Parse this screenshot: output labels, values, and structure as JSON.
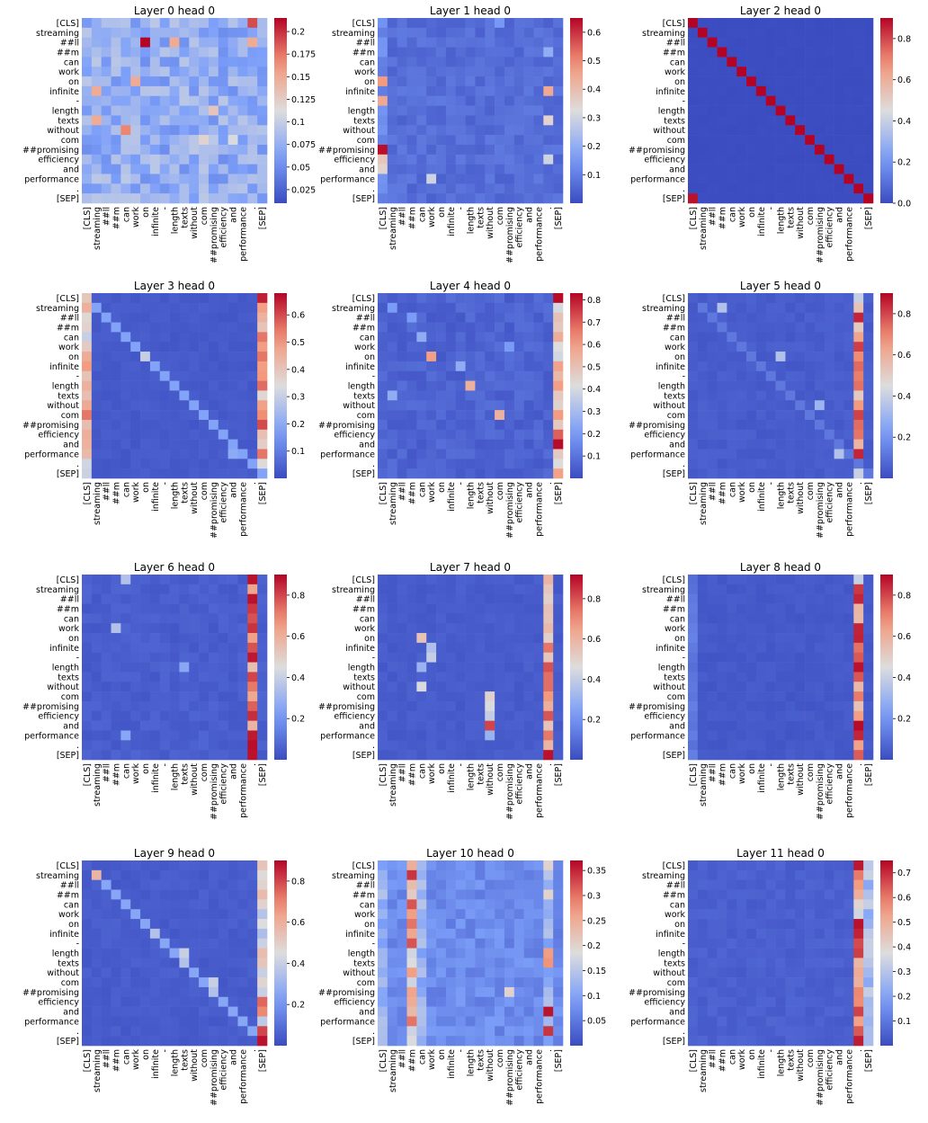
{
  "tokens": [
    "[CLS]",
    "streaming",
    "##ll",
    "##m",
    "can",
    "work",
    "on",
    "infinite",
    "-",
    "length",
    "texts",
    "without",
    "com",
    "##promising",
    "efficiency",
    "and",
    "performance",
    ".",
    "[SEP]"
  ],
  "colormap": {
    "name": "coolwarm",
    "low": "#3b4cc0",
    "mid": "#dddddd",
    "high": "#b40426"
  },
  "chart_data": [
    {
      "type": "heatmap",
      "title": "Layer 0 head 0",
      "colorbar_ticks": [
        0.025,
        0.05,
        0.075,
        0.1,
        0.125,
        0.15,
        0.175,
        0.2
      ],
      "vmin": 0.01,
      "vmax": 0.215,
      "baseline": 0.05,
      "noise": 0.045,
      "cells": [
        [
          0,
          17,
          0.19
        ],
        [
          2,
          6,
          0.215
        ],
        [
          2,
          9,
          0.15
        ],
        [
          2,
          17,
          0.15
        ],
        [
          6,
          5,
          0.15
        ],
        [
          7,
          1,
          0.15
        ],
        [
          9,
          13,
          0.13
        ],
        [
          10,
          1,
          0.15
        ],
        [
          11,
          4,
          0.17
        ],
        [
          12,
          12,
          0.12
        ],
        [
          12,
          15,
          0.11
        ]
      ],
      "columns": [],
      "diag": null
    },
    {
      "type": "heatmap",
      "title": "Layer 1 head 0",
      "colorbar_ticks": [
        0.1,
        0.2,
        0.3,
        0.4,
        0.5,
        0.6
      ],
      "vmin": 0.0,
      "vmax": 0.65,
      "baseline": 0.04,
      "noise": 0.05,
      "cells": [
        [
          13,
          0,
          0.64
        ],
        [
          6,
          0,
          0.48
        ],
        [
          8,
          0,
          0.45
        ],
        [
          14,
          0,
          0.38
        ],
        [
          15,
          0,
          0.35
        ],
        [
          16,
          5,
          0.3
        ],
        [
          7,
          17,
          0.45
        ],
        [
          10,
          17,
          0.35
        ],
        [
          14,
          17,
          0.3
        ],
        [
          3,
          17,
          0.2
        ],
        [
          0,
          12,
          0.15
        ]
      ],
      "columns": [
        [
          0,
          0.12
        ]
      ],
      "diag": null
    },
    {
      "type": "heatmap",
      "title": "Layer 2 head 0",
      "colorbar_ticks": [
        0.0,
        0.2,
        0.4,
        0.6,
        0.8
      ],
      "vmin": 0.0,
      "vmax": 0.9,
      "baseline": 0.0,
      "noise": 0.005,
      "cells": [
        [
          18,
          0,
          0.88
        ]
      ],
      "columns": [],
      "diag": [
        0,
        0.9
      ]
    },
    {
      "type": "heatmap",
      "title": "Layer 3 head 0",
      "colorbar_ticks": [
        0.1,
        0.2,
        0.3,
        0.4,
        0.5,
        0.6
      ],
      "vmin": 0.0,
      "vmax": 0.68,
      "baseline": 0.02,
      "noise": 0.02,
      "cells": [
        [
          1,
          0,
          0.45
        ],
        [
          7,
          0,
          0.5
        ],
        [
          9,
          0,
          0.45
        ],
        [
          12,
          0,
          0.55
        ],
        [
          13,
          18,
          0.6
        ],
        [
          16,
          18,
          0.55
        ],
        [
          6,
          6,
          0.3
        ],
        [
          16,
          15,
          0.2
        ],
        [
          0,
          18,
          0.65
        ]
      ],
      "columns": [
        [
          0,
          0.38
        ],
        [
          18,
          0.45
        ]
      ],
      "diag": [
        1,
        0.18
      ]
    },
    {
      "type": "heatmap",
      "title": "Layer 4 head 0",
      "colorbar_ticks": [
        0.1,
        0.2,
        0.3,
        0.4,
        0.5,
        0.6,
        0.7,
        0.8
      ],
      "vmin": 0.0,
      "vmax": 0.83,
      "baseline": 0.03,
      "noise": 0.06,
      "cells": [
        [
          0,
          18,
          0.82
        ],
        [
          15,
          18,
          0.82
        ],
        [
          14,
          18,
          0.7
        ],
        [
          6,
          5,
          0.6
        ],
        [
          9,
          9,
          0.55
        ],
        [
          12,
          12,
          0.55
        ],
        [
          7,
          8,
          0.25
        ],
        [
          5,
          13,
          0.2
        ],
        [
          1,
          1,
          0.2
        ],
        [
          2,
          3,
          0.2
        ],
        [
          4,
          4,
          0.25
        ],
        [
          10,
          1,
          0.25
        ]
      ],
      "columns": [
        [
          18,
          0.5
        ]
      ],
      "diag": null
    },
    {
      "type": "heatmap",
      "title": "Layer 5 head 0",
      "colorbar_ticks": [
        0.2,
        0.4,
        0.6,
        0.8
      ],
      "vmin": 0.0,
      "vmax": 0.9,
      "baseline": 0.03,
      "noise": 0.03,
      "cells": [
        [
          1,
          3,
          0.35
        ],
        [
          6,
          9,
          0.35
        ],
        [
          11,
          13,
          0.3
        ],
        [
          16,
          15,
          0.35
        ],
        [
          18,
          17,
          0.4
        ],
        [
          2,
          17,
          0.85
        ],
        [
          16,
          17,
          0.85
        ],
        [
          0,
          17,
          0.4
        ]
      ],
      "columns": [
        [
          17,
          0.65
        ]
      ],
      "diag": [
        1,
        0.12
      ]
    },
    {
      "type": "heatmap",
      "title": "Layer 6 head 0",
      "colorbar_ticks": [
        0.2,
        0.4,
        0.6,
        0.8
      ],
      "vmin": 0.0,
      "vmax": 0.9,
      "baseline": 0.03,
      "noise": 0.04,
      "cells": [
        [
          0,
          4,
          0.35
        ],
        [
          5,
          3,
          0.35
        ],
        [
          9,
          10,
          0.25
        ],
        [
          16,
          4,
          0.25
        ],
        [
          18,
          17,
          0.88
        ],
        [
          2,
          17,
          0.88
        ]
      ],
      "columns": [
        [
          17,
          0.72
        ]
      ],
      "diag": null
    },
    {
      "type": "heatmap",
      "title": "Layer 7 head 0",
      "colorbar_ticks": [
        0.2,
        0.4,
        0.6,
        0.8
      ],
      "vmin": 0.0,
      "vmax": 0.92,
      "baseline": 0.03,
      "noise": 0.03,
      "cells": [
        [
          6,
          4,
          0.55
        ],
        [
          7,
          5,
          0.35
        ],
        [
          8,
          5,
          0.4
        ],
        [
          9,
          4,
          0.3
        ],
        [
          11,
          4,
          0.45
        ],
        [
          12,
          11,
          0.5
        ],
        [
          13,
          11,
          0.45
        ],
        [
          14,
          11,
          0.4
        ],
        [
          15,
          11,
          0.82
        ],
        [
          16,
          11,
          0.3
        ],
        [
          18,
          17,
          0.9
        ],
        [
          0,
          17,
          0.6
        ]
      ],
      "columns": [
        [
          17,
          0.65
        ]
      ],
      "diag": null
    },
    {
      "type": "heatmap",
      "title": "Layer 8 head 0",
      "colorbar_ticks": [
        0.2,
        0.4,
        0.6,
        0.8
      ],
      "vmin": 0.0,
      "vmax": 0.9,
      "baseline": 0.025,
      "noise": 0.025,
      "cells": [
        [
          9,
          17,
          0.88
        ],
        [
          1,
          17,
          0.82
        ],
        [
          2,
          17,
          0.85
        ],
        [
          0,
          17,
          0.4
        ]
      ],
      "columns": [
        [
          17,
          0.72
        ],
        [
          0,
          0.12
        ]
      ],
      "diag": null
    },
    {
      "type": "heatmap",
      "title": "Layer 9 head 0",
      "colorbar_ticks": [
        0.2,
        0.4,
        0.6,
        0.8
      ],
      "vmin": 0.0,
      "vmax": 0.9,
      "baseline": 0.03,
      "noise": 0.03,
      "cells": [
        [
          1,
          1,
          0.58
        ],
        [
          7,
          7,
          0.35
        ],
        [
          9,
          10,
          0.4
        ],
        [
          10,
          10,
          0.35
        ],
        [
          12,
          13,
          0.4
        ],
        [
          13,
          13,
          0.35
        ],
        [
          18,
          18,
          0.88
        ],
        [
          17,
          18,
          0.8
        ],
        [
          14,
          18,
          0.75
        ],
        [
          15,
          18,
          0.7
        ]
      ],
      "columns": [
        [
          18,
          0.45
        ]
      ],
      "diag": [
        2,
        0.25
      ]
    },
    {
      "type": "heatmap",
      "title": "Layer 10 head 0",
      "colorbar_ticks": [
        0.05,
        0.1,
        0.15,
        0.2,
        0.25,
        0.3,
        0.35
      ],
      "vmin": 0.0,
      "vmax": 0.37,
      "baseline": 0.05,
      "noise": 0.04,
      "cells": [
        [
          1,
          3,
          0.34
        ],
        [
          4,
          3,
          0.32
        ],
        [
          6,
          3,
          0.3
        ],
        [
          8,
          3,
          0.32
        ],
        [
          16,
          3,
          0.3
        ],
        [
          15,
          17,
          0.36
        ],
        [
          17,
          17,
          0.34
        ],
        [
          10,
          17,
          0.28
        ],
        [
          9,
          17,
          0.27
        ],
        [
          13,
          13,
          0.2
        ],
        [
          3,
          17,
          0.2
        ],
        [
          0,
          17,
          0.2
        ]
      ],
      "columns": [
        [
          3,
          0.22
        ],
        [
          4,
          0.12
        ],
        [
          0,
          0.12
        ],
        [
          17,
          0.12
        ]
      ],
      "diag": null
    },
    {
      "type": "heatmap",
      "title": "Layer 11 head 0",
      "colorbar_ticks": [
        0.1,
        0.2,
        0.3,
        0.4,
        0.5,
        0.6,
        0.7
      ],
      "vmin": 0.0,
      "vmax": 0.75,
      "baseline": 0.03,
      "noise": 0.03,
      "cells": [
        [
          18,
          17,
          0.72
        ],
        [
          1,
          17,
          0.6
        ],
        [
          2,
          17,
          0.55
        ],
        [
          3,
          17,
          0.5
        ],
        [
          4,
          17,
          0.4
        ],
        [
          5,
          17,
          0.35
        ]
      ],
      "columns": [
        [
          17,
          0.62
        ],
        [
          18,
          0.28
        ]
      ],
      "diag": null
    }
  ]
}
